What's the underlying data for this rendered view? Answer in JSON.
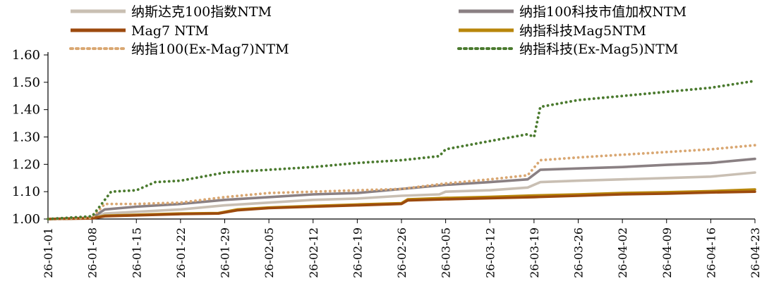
{
  "chart_data": {
    "type": "line",
    "title": "",
    "xlabel": "",
    "ylabel": "",
    "x_start": "2026-01-01",
    "ylim": [
      1.0,
      1.6
    ],
    "yticks": [
      "1.00",
      "1.10",
      "1.20",
      "1.30",
      "1.40",
      "1.50",
      "1.60"
    ],
    "xticks": [
      "26-01-01",
      "26-01-08",
      "26-01-15",
      "26-01-22",
      "26-01-29",
      "26-02-05",
      "26-02-12",
      "26-02-19",
      "26-02-26",
      "26-03-05",
      "26-03-12",
      "26-03-19",
      "26-03-26",
      "26-04-02",
      "26-04-09",
      "26-04-16",
      "26-04-23"
    ],
    "grid": false,
    "legend_position": "top",
    "series": [
      {
        "name": "纳斯达克100指数NTM",
        "color": "#c9bfb3",
        "style": "solid",
        "points": [
          [
            "2026-01-01",
            1.0
          ],
          [
            "2026-01-08",
            1.003
          ],
          [
            "2026-01-10",
            1.02
          ],
          [
            "2026-01-22",
            1.035
          ],
          [
            "2026-01-29",
            1.05
          ],
          [
            "2026-02-05",
            1.06
          ],
          [
            "2026-02-12",
            1.07
          ],
          [
            "2026-02-19",
            1.075
          ],
          [
            "2026-02-26",
            1.085
          ],
          [
            "2026-03-04",
            1.09
          ],
          [
            "2026-03-05",
            1.1
          ],
          [
            "2026-03-12",
            1.105
          ],
          [
            "2026-03-18",
            1.115
          ],
          [
            "2026-03-20",
            1.135
          ],
          [
            "2026-03-26",
            1.14
          ],
          [
            "2026-04-02",
            1.145
          ],
          [
            "2026-04-09",
            1.15
          ],
          [
            "2026-04-16",
            1.155
          ],
          [
            "2026-04-23",
            1.17
          ]
        ]
      },
      {
        "name": "纳指100科技市值加权NTM",
        "color": "#8a8083",
        "style": "solid",
        "points": [
          [
            "2026-01-01",
            1.0
          ],
          [
            "2026-01-08",
            1.005
          ],
          [
            "2026-01-10",
            1.035
          ],
          [
            "2026-01-15",
            1.045
          ],
          [
            "2026-01-22",
            1.055
          ],
          [
            "2026-01-29",
            1.07
          ],
          [
            "2026-02-05",
            1.08
          ],
          [
            "2026-02-12",
            1.09
          ],
          [
            "2026-02-19",
            1.095
          ],
          [
            "2026-02-26",
            1.11
          ],
          [
            "2026-03-05",
            1.125
          ],
          [
            "2026-03-12",
            1.135
          ],
          [
            "2026-03-18",
            1.145
          ],
          [
            "2026-03-20",
            1.18
          ],
          [
            "2026-03-26",
            1.185
          ],
          [
            "2026-04-02",
            1.19
          ],
          [
            "2026-04-09",
            1.198
          ],
          [
            "2026-04-16",
            1.205
          ],
          [
            "2026-04-23",
            1.22
          ]
        ]
      },
      {
        "name": "Mag7 NTM",
        "color": "#9c4a0e",
        "style": "solid",
        "points": [
          [
            "2026-01-01",
            1.0
          ],
          [
            "2026-01-08",
            1.002
          ],
          [
            "2026-01-10",
            1.01
          ],
          [
            "2026-01-22",
            1.018
          ],
          [
            "2026-01-28",
            1.02
          ],
          [
            "2026-01-31",
            1.032
          ],
          [
            "2026-02-05",
            1.04
          ],
          [
            "2026-02-12",
            1.045
          ],
          [
            "2026-02-19",
            1.05
          ],
          [
            "2026-02-26",
            1.055
          ],
          [
            "2026-02-27",
            1.068
          ],
          [
            "2026-03-05",
            1.072
          ],
          [
            "2026-03-12",
            1.076
          ],
          [
            "2026-03-19",
            1.08
          ],
          [
            "2026-03-26",
            1.085
          ],
          [
            "2026-04-02",
            1.09
          ],
          [
            "2026-04-09",
            1.093
          ],
          [
            "2026-04-16",
            1.097
          ],
          [
            "2026-04-23",
            1.1
          ]
        ]
      },
      {
        "name": "纳指科技Mag5NTM",
        "color": "#b8860b",
        "style": "solid",
        "points": [
          [
            "2026-01-01",
            1.0
          ],
          [
            "2026-01-08",
            1.003
          ],
          [
            "2026-01-10",
            1.012
          ],
          [
            "2026-01-22",
            1.02
          ],
          [
            "2026-01-28",
            1.022
          ],
          [
            "2026-01-31",
            1.035
          ],
          [
            "2026-02-05",
            1.042
          ],
          [
            "2026-02-12",
            1.048
          ],
          [
            "2026-02-19",
            1.053
          ],
          [
            "2026-02-26",
            1.058
          ],
          [
            "2026-02-27",
            1.072
          ],
          [
            "2026-03-05",
            1.077
          ],
          [
            "2026-03-12",
            1.081
          ],
          [
            "2026-03-19",
            1.086
          ],
          [
            "2026-03-26",
            1.09
          ],
          [
            "2026-04-02",
            1.095
          ],
          [
            "2026-04-09",
            1.098
          ],
          [
            "2026-04-16",
            1.102
          ],
          [
            "2026-04-23",
            1.108
          ]
        ]
      },
      {
        "name": "纳指100(Ex-Mag7)NTM",
        "color": "#d9a772",
        "style": "dotted",
        "points": [
          [
            "2026-01-01",
            1.0
          ],
          [
            "2026-01-08",
            1.005
          ],
          [
            "2026-01-10",
            1.055
          ],
          [
            "2026-01-15",
            1.055
          ],
          [
            "2026-01-22",
            1.06
          ],
          [
            "2026-01-29",
            1.08
          ],
          [
            "2026-02-05",
            1.095
          ],
          [
            "2026-02-12",
            1.1
          ],
          [
            "2026-02-19",
            1.105
          ],
          [
            "2026-02-26",
            1.11
          ],
          [
            "2026-03-05",
            1.13
          ],
          [
            "2026-03-12",
            1.145
          ],
          [
            "2026-03-18",
            1.16
          ],
          [
            "2026-03-20",
            1.215
          ],
          [
            "2026-03-26",
            1.225
          ],
          [
            "2026-04-02",
            1.235
          ],
          [
            "2026-04-09",
            1.245
          ],
          [
            "2026-04-16",
            1.255
          ],
          [
            "2026-04-23",
            1.27
          ]
        ]
      },
      {
        "name": "纳指科技(Ex-Mag5)NTM",
        "color": "#4a7a2e",
        "style": "dotted",
        "points": [
          [
            "2026-01-01",
            1.0
          ],
          [
            "2026-01-08",
            1.01
          ],
          [
            "2026-01-11",
            1.1
          ],
          [
            "2026-01-15",
            1.105
          ],
          [
            "2026-01-18",
            1.135
          ],
          [
            "2026-01-22",
            1.14
          ],
          [
            "2026-01-29",
            1.17
          ],
          [
            "2026-02-05",
            1.18
          ],
          [
            "2026-02-12",
            1.19
          ],
          [
            "2026-02-19",
            1.205
          ],
          [
            "2026-02-26",
            1.215
          ],
          [
            "2026-03-04",
            1.23
          ],
          [
            "2026-03-05",
            1.255
          ],
          [
            "2026-03-12",
            1.285
          ],
          [
            "2026-03-18",
            1.31
          ],
          [
            "2026-03-19",
            1.3
          ],
          [
            "2026-03-20",
            1.41
          ],
          [
            "2026-03-26",
            1.435
          ],
          [
            "2026-04-02",
            1.45
          ],
          [
            "2026-04-09",
            1.465
          ],
          [
            "2026-04-16",
            1.48
          ],
          [
            "2026-04-23",
            1.505
          ]
        ]
      }
    ]
  }
}
